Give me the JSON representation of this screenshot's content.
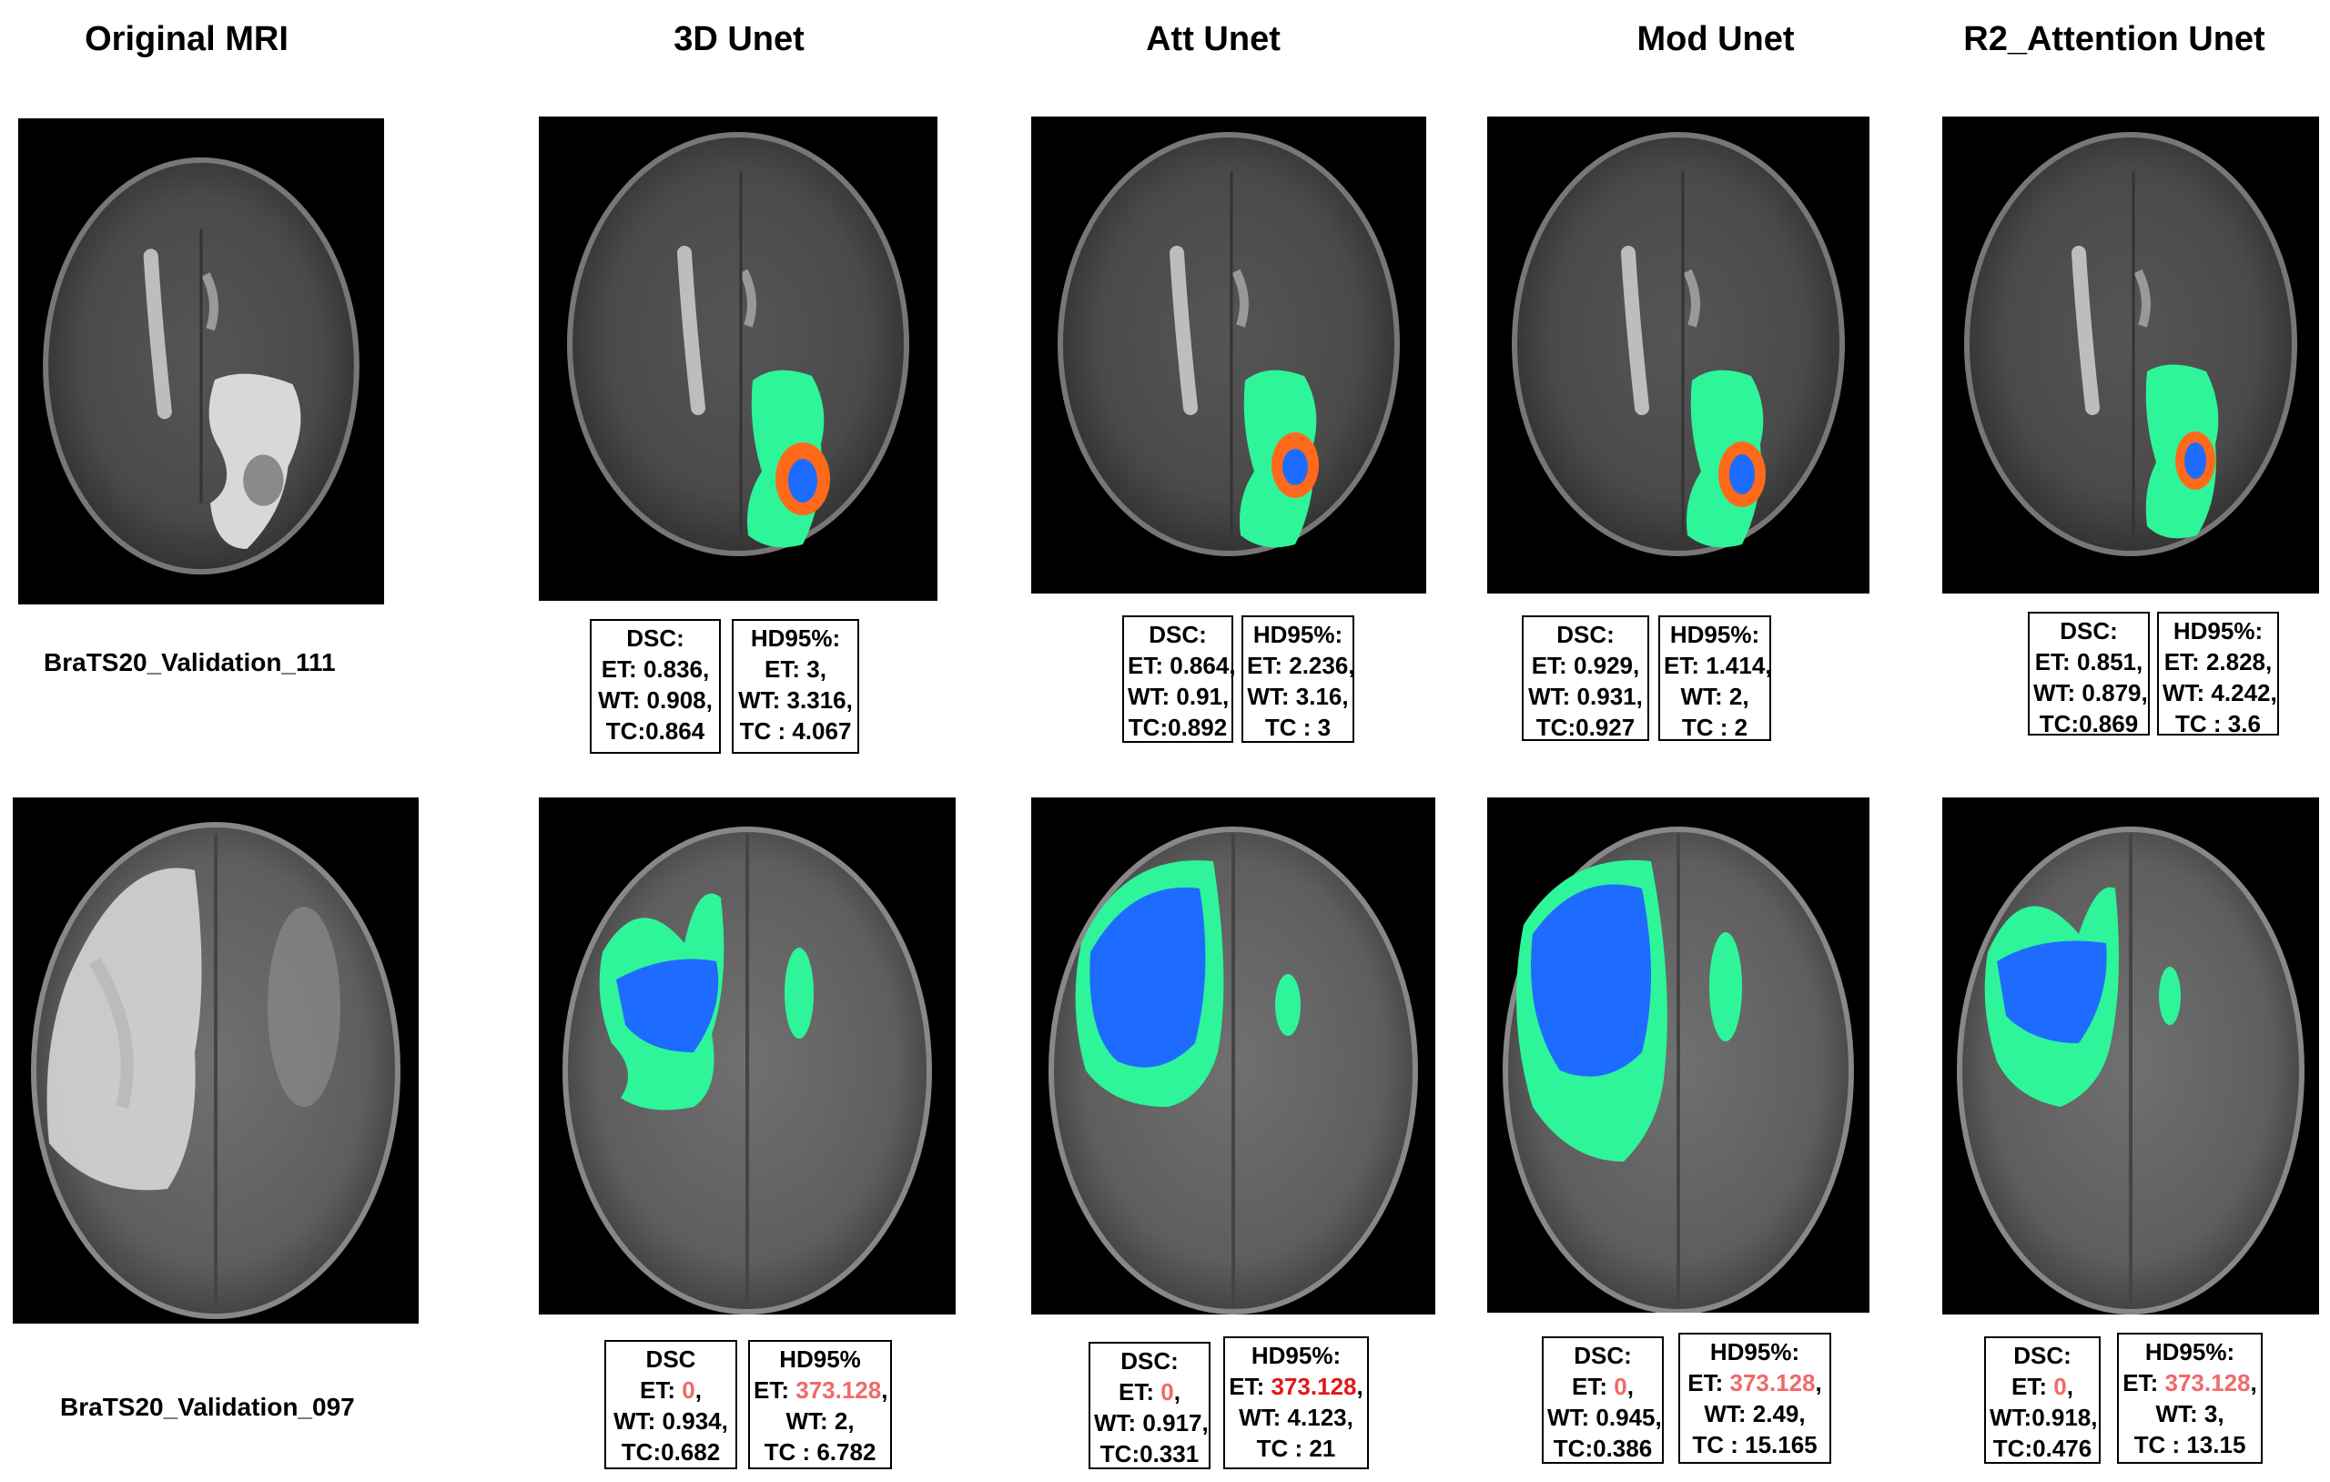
{
  "columns": [
    "Original  MRI",
    "3D Unet",
    "Att Unet",
    "Mod Unet",
    "R2_Attention Unet"
  ],
  "rows": [
    {
      "case_label": "BraTS20_Validation_111",
      "results": [
        {
          "dsc": {
            "header": "DSC:",
            "lines": [
              {
                "label": "ET: ",
                "value": "0.836",
                "suffix": ","
              },
              {
                "label": "WT: ",
                "value": "0.908",
                "suffix": ","
              },
              {
                "label": "TC:",
                "value": "0.864",
                "suffix": ""
              }
            ]
          },
          "hd": {
            "header": "HD95%:",
            "lines": [
              {
                "label": "ET: ",
                "value": "3",
                "suffix": ","
              },
              {
                "label": "WT: ",
                "value": "3.316",
                "suffix": ","
              },
              {
                "label": "TC : ",
                "value": "4.067",
                "suffix": ""
              }
            ]
          }
        },
        {
          "dsc": {
            "header": "DSC:",
            "lines": [
              {
                "label": "ET: ",
                "value": "0.864",
                "suffix": ","
              },
              {
                "label": "WT: ",
                "value": "0.91",
                "suffix": ","
              },
              {
                "label": "TC:",
                "value": "0.892",
                "suffix": ""
              }
            ]
          },
          "hd": {
            "header": "HD95%:",
            "lines": [
              {
                "label": "ET: ",
                "value": "2.236",
                "suffix": ","
              },
              {
                "label": "WT: ",
                "value": "3.16",
                "suffix": ","
              },
              {
                "label": "TC : ",
                "value": "3",
                "suffix": ""
              }
            ]
          }
        },
        {
          "dsc": {
            "header": "DSC:",
            "lines": [
              {
                "label": "ET: ",
                "value": "0.929",
                "suffix": ","
              },
              {
                "label": "WT: ",
                "value": "0.931",
                "suffix": ","
              },
              {
                "label": "TC:",
                "value": "0.927",
                "suffix": ""
              }
            ]
          },
          "hd": {
            "header": "HD95%:",
            "lines": [
              {
                "label": "ET: ",
                "value": "1.414",
                "suffix": ","
              },
              {
                "label": "WT: ",
                "value": "2",
                "suffix": ","
              },
              {
                "label": "TC : ",
                "value": "2",
                "suffix": ""
              }
            ]
          }
        },
        {
          "dsc": {
            "header": "DSC:",
            "lines": [
              {
                "label": "ET: ",
                "value": "0.851",
                "suffix": ","
              },
              {
                "label": "WT: ",
                "value": "0.879",
                "suffix": ","
              },
              {
                "label": "TC:",
                "value": "0.869",
                "suffix": ""
              }
            ]
          },
          "hd": {
            "header": "HD95%:",
            "lines": [
              {
                "label": "ET: ",
                "value": "2.828",
                "suffix": ","
              },
              {
                "label": "WT: ",
                "value": "4.242",
                "suffix": ","
              },
              {
                "label": "TC : ",
                "value": "3.6",
                "suffix": ""
              }
            ]
          }
        }
      ]
    },
    {
      "case_label": "BraTS20_Validation_097",
      "results": [
        {
          "dsc": {
            "header": "DSC",
            "lines": [
              {
                "label": "ET: ",
                "value": "0",
                "suffix": ",",
                "highlight": true
              },
              {
                "label": "WT: ",
                "value": "0.934",
                "suffix": ","
              },
              {
                "label": "TC:",
                "value": "0.682",
                "suffix": ""
              }
            ]
          },
          "hd": {
            "header": "HD95%",
            "lines": [
              {
                "label": "ET: ",
                "value": "373.128",
                "suffix": ",",
                "highlight": true
              },
              {
                "label": "WT: ",
                "value": "2",
                "suffix": ","
              },
              {
                "label": "TC : ",
                "value": "6.782",
                "suffix": ""
              }
            ]
          }
        },
        {
          "dsc": {
            "header": "DSC:",
            "lines": [
              {
                "label": "ET: ",
                "value": "0",
                "suffix": ",",
                "highlight": true
              },
              {
                "label": "WT: ",
                "value": "0.917",
                "suffix": ","
              },
              {
                "label": "TC:",
                "value": "0.331",
                "suffix": ""
              }
            ]
          },
          "hd": {
            "header": "HD95%:",
            "lines": [
              {
                "label": "ET: ",
                "value": "373.128",
                "suffix": ",",
                "highlight": true
              },
              {
                "label": "WT: ",
                "value": "4.123",
                "suffix": ","
              },
              {
                "label": "TC : ",
                "value": "21",
                "suffix": ""
              }
            ]
          }
        },
        {
          "dsc": {
            "header": "DSC:",
            "lines": [
              {
                "label": "ET: ",
                "value": "0",
                "suffix": ",",
                "highlight": true
              },
              {
                "label": "WT: ",
                "value": "0.945",
                "suffix": ","
              },
              {
                "label": "TC:",
                "value": "0.386",
                "suffix": ""
              }
            ]
          },
          "hd": {
            "header": "HD95%:",
            "lines": [
              {
                "label": "ET: ",
                "value": "373.128",
                "suffix": ",",
                "highlight": true
              },
              {
                "label": "WT: ",
                "value": "2.49",
                "suffix": ","
              },
              {
                "label": "TC : ",
                "value": "15.165",
                "suffix": ""
              }
            ]
          }
        },
        {
          "dsc": {
            "header": "DSC:",
            "lines": [
              {
                "label": "ET: ",
                "value": "0",
                "suffix": ",",
                "highlight": true
              },
              {
                "label": "WT:",
                "value": "0.918",
                "suffix": ","
              },
              {
                "label": "TC:",
                "value": "0.476",
                "suffix": ""
              }
            ]
          },
          "hd": {
            "header": "HD95%:",
            "lines": [
              {
                "label": "ET: ",
                "value": "373.128",
                "suffix": ",",
                "highlight": true
              },
              {
                "label": "WT: ",
                "value": "3",
                "suffix": ","
              },
              {
                "label": "TC : ",
                "value": "13.15",
                "suffix": ""
              }
            ]
          }
        }
      ]
    }
  ],
  "colors": {
    "whole_tumor": "#2ef59a",
    "tumor_core": "#ff6a1a",
    "enhancing_tumor": "#1e6cff",
    "highlight": "#f06a6a",
    "highlight_strong": "#e01818"
  }
}
